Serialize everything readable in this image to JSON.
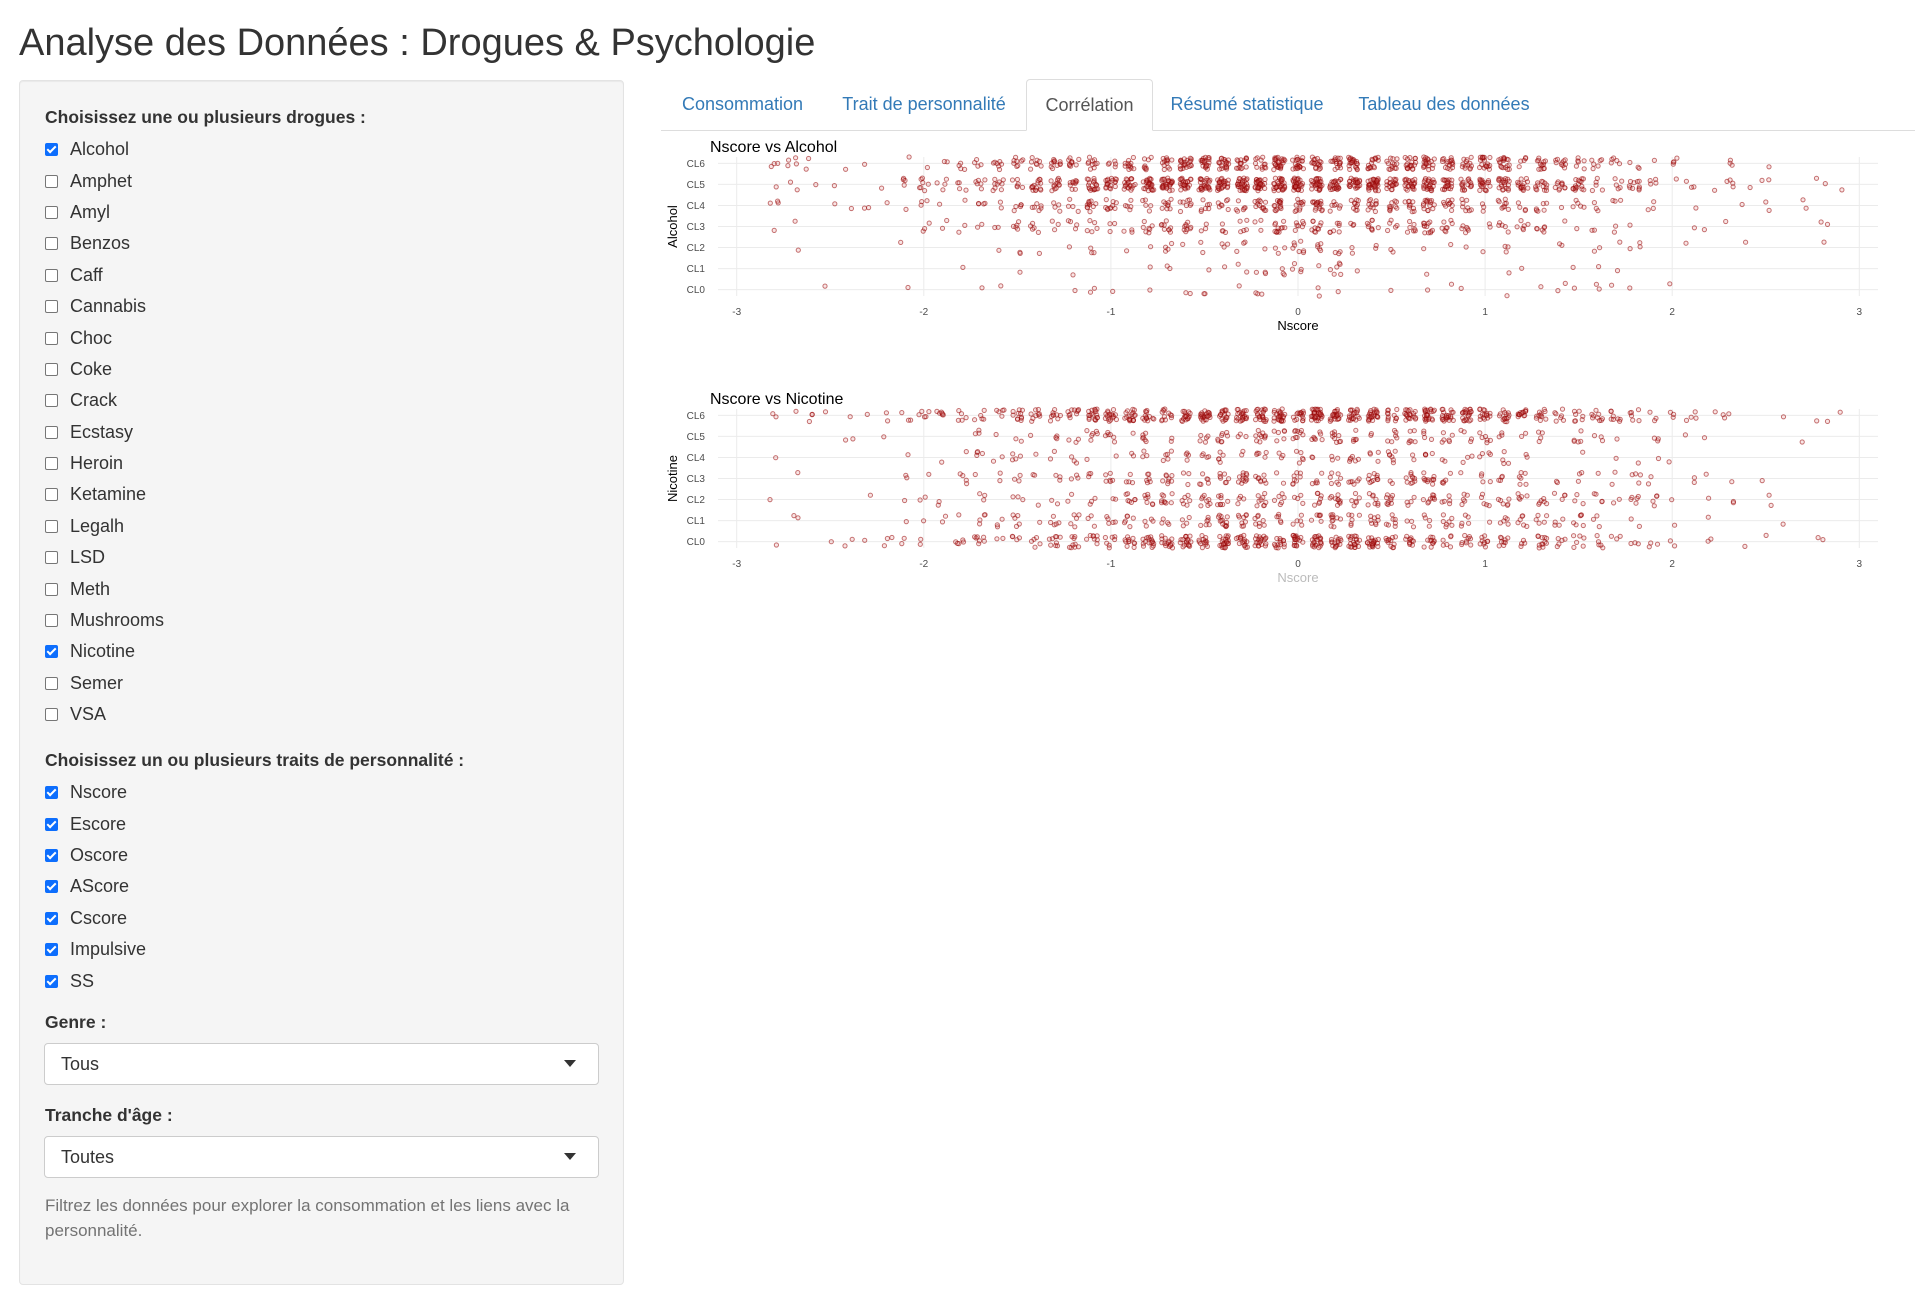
{
  "page": {
    "title": "Analyse des Données : Drogues & Psychologie"
  },
  "sidebar": {
    "drugs_label": "Choisissez une ou plusieurs drogues :",
    "drugs": [
      {
        "label": "Alcohol",
        "checked": true
      },
      {
        "label": "Amphet",
        "checked": false
      },
      {
        "label": "Amyl",
        "checked": false
      },
      {
        "label": "Benzos",
        "checked": false
      },
      {
        "label": "Caff",
        "checked": false
      },
      {
        "label": "Cannabis",
        "checked": false
      },
      {
        "label": "Choc",
        "checked": false
      },
      {
        "label": "Coke",
        "checked": false
      },
      {
        "label": "Crack",
        "checked": false
      },
      {
        "label": "Ecstasy",
        "checked": false
      },
      {
        "label": "Heroin",
        "checked": false
      },
      {
        "label": "Ketamine",
        "checked": false
      },
      {
        "label": "Legalh",
        "checked": false
      },
      {
        "label": "LSD",
        "checked": false
      },
      {
        "label": "Meth",
        "checked": false
      },
      {
        "label": "Mushrooms",
        "checked": false
      },
      {
        "label": "Nicotine",
        "checked": true
      },
      {
        "label": "Semer",
        "checked": false
      },
      {
        "label": "VSA",
        "checked": false
      }
    ],
    "traits_label": "Choisissez un ou plusieurs traits de personnalité :",
    "traits": [
      {
        "label": "Nscore",
        "checked": true
      },
      {
        "label": "Escore",
        "checked": true
      },
      {
        "label": "Oscore",
        "checked": true
      },
      {
        "label": "AScore",
        "checked": true
      },
      {
        "label": "Cscore",
        "checked": true
      },
      {
        "label": "Impulsive",
        "checked": true
      },
      {
        "label": "SS",
        "checked": true
      }
    ],
    "gender_label": "Genre :",
    "gender_value": "Tous",
    "age_label": "Tranche d'âge :",
    "age_value": "Toutes",
    "help_text": "Filtrez les données pour explorer la consommation et les liens avec la personnalité."
  },
  "tabs": [
    {
      "label": "Consommation",
      "active": false
    },
    {
      "label": "Trait de personnalité",
      "active": false
    },
    {
      "label": "Corrélation",
      "active": true
    },
    {
      "label": "Résumé statistique",
      "active": false
    },
    {
      "label": "Tableau des données",
      "active": false
    }
  ],
  "colors": {
    "point_fill": "#dc6e6e",
    "point_stroke": "#960000",
    "tab_link": "#337ab7",
    "checkbox": "#0d6efd"
  },
  "chart_data": [
    {
      "type": "scatter",
      "title": "Nscore vs Alcohol",
      "xlabel": "Nscore",
      "ylabel": "Alcohol",
      "xlim": [
        -3.1,
        3.1
      ],
      "x_ticks": [
        "-3",
        "-2",
        "-1",
        "0",
        "1",
        "2",
        "3"
      ],
      "categories": [
        "CL0",
        "CL1",
        "CL2",
        "CL3",
        "CL4",
        "CL5",
        "CL6"
      ],
      "approx_counts": [
        34,
        34,
        68,
        198,
        287,
        759,
        505
      ],
      "x_distribution": {
        "mean": 0.0,
        "sd": 1.0
      },
      "jitter": 0.3,
      "grid": true
    },
    {
      "type": "scatter",
      "title": "Nscore vs Nicotine",
      "xlabel": "Nscore",
      "ylabel": "Nicotine",
      "xlim": [
        -3.1,
        3.1
      ],
      "x_ticks": [
        "-3",
        "-2",
        "-1",
        "0",
        "1",
        "2",
        "3"
      ],
      "categories": [
        "CL0",
        "CL1",
        "CL2",
        "CL3",
        "CL4",
        "CL5",
        "CL6"
      ],
      "approx_counts": [
        428,
        193,
        204,
        185,
        108,
        157,
        610
      ],
      "x_distribution": {
        "mean": 0.0,
        "sd": 1.0
      },
      "jitter": 0.3,
      "grid": true
    }
  ]
}
